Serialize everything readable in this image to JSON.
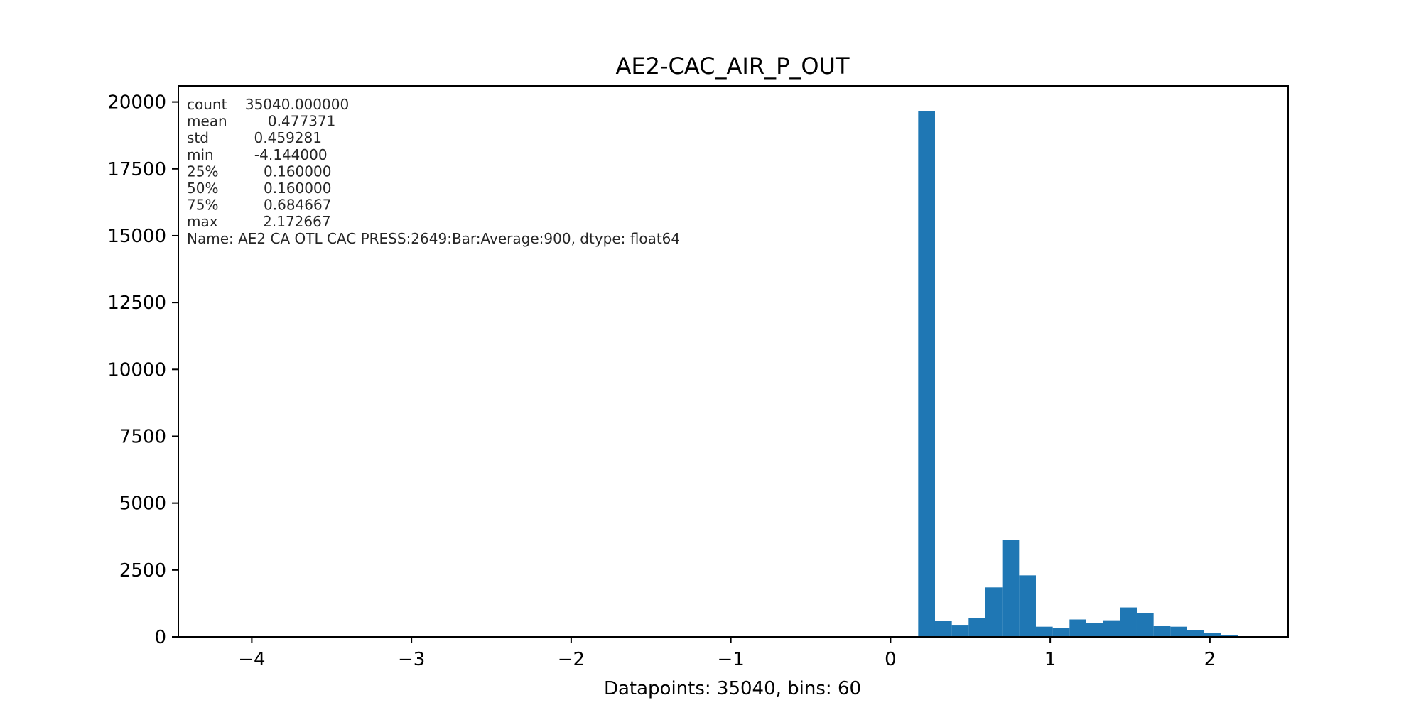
{
  "chart_data": {
    "type": "bar",
    "title": "AE2-CAC_AIR_P_OUT",
    "xlabel": "Datapoints: 35040, bins: 60",
    "ylabel": "",
    "xlim": [
      -4.46,
      2.49
    ],
    "ylim": [
      0,
      20600
    ],
    "x_ticks": [
      -4,
      -3,
      -2,
      -1,
      0,
      1,
      2
    ],
    "x_tick_labels": [
      "−4",
      "−3",
      "−2",
      "−1",
      "0",
      "1",
      "2"
    ],
    "y_ticks": [
      0,
      2500,
      5000,
      7500,
      10000,
      12500,
      15000,
      17500,
      20000
    ],
    "y_tick_labels": [
      "0",
      "2500",
      "5000",
      "7500",
      "10000",
      "12500",
      "15000",
      "17500",
      "20000"
    ],
    "grid": false,
    "bar_color": "#1f77b4",
    "bin_start": -4.144,
    "bin_width": 0.1053,
    "values": [
      1,
      0,
      0,
      0,
      0,
      0,
      0,
      0,
      0,
      0,
      0,
      0,
      0,
      0,
      0,
      0,
      0,
      0,
      0,
      0,
      0,
      0,
      0,
      0,
      0,
      0,
      0,
      0,
      0,
      0,
      0,
      0,
      0,
      0,
      0,
      0,
      0,
      0,
      0,
      0,
      0,
      19650,
      600,
      450,
      700,
      1850,
      3620,
      2300,
      380,
      320,
      650,
      530,
      620,
      1100,
      880,
      420,
      380,
      260,
      150,
      60
    ],
    "stats_text": [
      "count    35040.000000",
      "mean         0.477371",
      "std          0.459281",
      "min         -4.144000",
      "25%          0.160000",
      "50%          0.160000",
      "75%          0.684667",
      "max          2.172667",
      "Name: AE2 CA OTL CAC PRESS:2649:Bar:Average:900, dtype: float64"
    ]
  }
}
